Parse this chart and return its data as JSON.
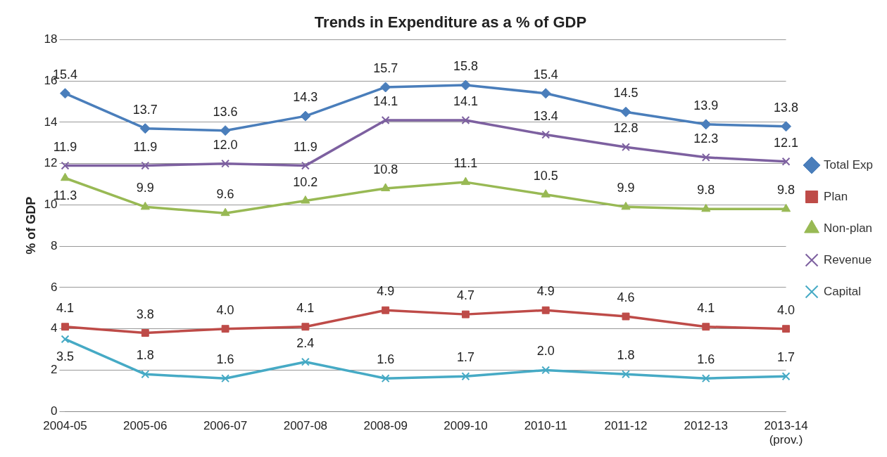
{
  "chart_data": {
    "type": "line",
    "title": "Trends in Expenditure as a % of GDP",
    "ylabel": "% of GDP",
    "categories": [
      "2004-05",
      "2005-06",
      "2006-07",
      "2007-08",
      "2008-09",
      "2009-10",
      "2010-11",
      "2011-12",
      "2012-13",
      "2013-14 (prov.)"
    ],
    "series": [
      {
        "name": "Total Exp",
        "color": "#4a7ebb",
        "marker": "diamond",
        "values": [
          15.4,
          13.7,
          13.6,
          14.3,
          15.7,
          15.8,
          15.4,
          14.5,
          13.9,
          13.8
        ],
        "value_labels": [
          "15.4",
          "13.7",
          "13.6",
          "14.3",
          "15.7",
          "15.8",
          "15.4",
          "14.5",
          "13.9",
          "13.8"
        ]
      },
      {
        "name": "Plan",
        "color": "#be4b48",
        "marker": "square",
        "values": [
          4.1,
          3.8,
          4.0,
          4.1,
          4.9,
          4.7,
          4.9,
          4.6,
          4.1,
          4.0
        ],
        "value_labels": [
          "4.1",
          "3.8",
          "4.0",
          "4.1",
          "4.9",
          "4.7",
          "4.9",
          "4.6",
          "4.1",
          "4.0"
        ]
      },
      {
        "name": "Non-plan",
        "color": "#98b954",
        "marker": "triangle",
        "values": [
          11.3,
          9.9,
          9.6,
          10.2,
          10.8,
          11.1,
          10.5,
          9.9,
          9.8,
          9.8
        ],
        "value_labels": [
          "11.3",
          "9.9",
          "9.6",
          "10.2",
          "10.8",
          "11.1",
          "10.5",
          "9.9",
          "9.8",
          "9.8"
        ]
      },
      {
        "name": "Revenue",
        "color": "#7d60a0",
        "marker": "cross",
        "values": [
          11.9,
          11.9,
          12.0,
          11.9,
          14.1,
          14.1,
          13.4,
          12.8,
          12.3,
          12.1
        ],
        "value_labels": [
          "11.9",
          "11.9",
          "12.0",
          "11.9",
          "14.1",
          "14.1",
          "13.4",
          "12.8",
          "12.3",
          "12.1"
        ]
      },
      {
        "name": "Capital",
        "color": "#46aac5",
        "marker": "cross",
        "values": [
          3.5,
          1.8,
          1.6,
          2.4,
          1.6,
          1.7,
          2.0,
          1.8,
          1.6,
          1.7
        ],
        "value_labels": [
          "3.5",
          "1.8",
          "1.6",
          "2.4",
          "1.6",
          "1.7",
          "2.0",
          "1.8",
          "1.6",
          "1.7"
        ]
      }
    ],
    "ylim": [
      0,
      18
    ],
    "yticks": [
      0,
      2,
      4,
      6,
      8,
      10,
      12,
      14,
      16,
      18
    ],
    "grid": "y",
    "legend": "right",
    "line_style": "solid"
  }
}
